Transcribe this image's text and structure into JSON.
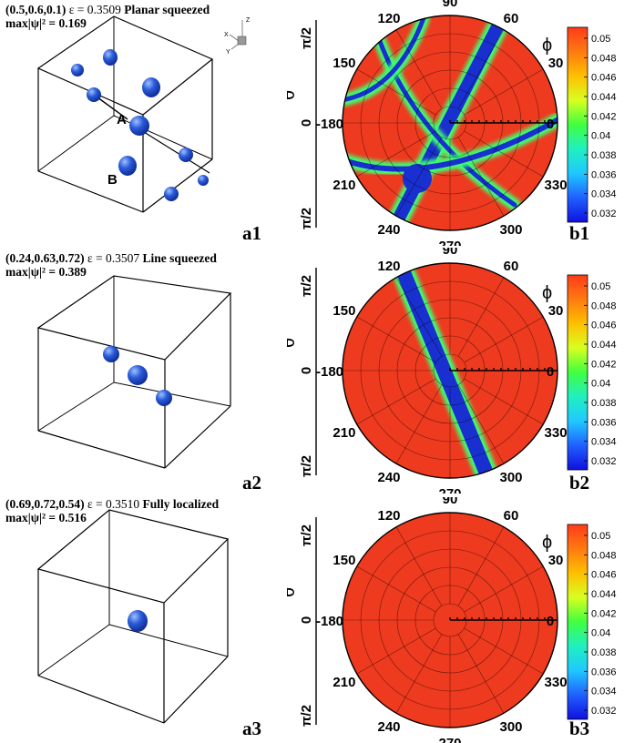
{
  "panels": [
    {
      "params": "(0.5,0.6,0.1)",
      "epsilon": "ε = 0.3509",
      "kind": "Planar squeezed",
      "maxline": "max|ψ|² = 0.169",
      "cube_tag": "a1",
      "polar_tag": "b1",
      "markers": [
        "A",
        "B"
      ]
    },
    {
      "params": "(0.24,0.63,0.72)",
      "epsilon": "ε = 0.3507",
      "kind": "Line squeezed",
      "maxline": "max|ψ|² = 0.389",
      "cube_tag": "a2",
      "polar_tag": "b2",
      "markers": []
    },
    {
      "params": "(0.69,0.72,0.54)",
      "epsilon": "ε = 0.3510",
      "kind": "Fully localized",
      "maxline": "max|ψ|² = 0.516",
      "cube_tag": "a3",
      "polar_tag": "b3",
      "markers": []
    }
  ],
  "axes_triad": {
    "z": "Z",
    "x": "X",
    "y": "Y"
  },
  "polar": {
    "phi_label": "ϕ",
    "theta_label": "θ",
    "theta_top": "π/2",
    "theta_mid": "0",
    "theta_bottom": "π/2",
    "angle_labels": [
      "90",
      "60",
      "30",
      "0",
      "330",
      "300",
      "270",
      "240",
      "210",
      "-180",
      "150",
      "120"
    ]
  },
  "colorbar": {
    "ticks": [
      "0.05",
      "0.048",
      "0.046",
      "0.044",
      "0.042",
      "0.04",
      "0.038",
      "0.036",
      "0.034",
      "0.032"
    ],
    "colors": [
      "#ff3b1a",
      "#ff7a10",
      "#ffc000",
      "#d8ff20",
      "#40ff40",
      "#20f0c0",
      "#20c8ff",
      "#2060ff",
      "#1010e0"
    ]
  },
  "colors": {
    "sphere": "#2a5bd8",
    "field": "#ee3a1e",
    "band": "#1a2fd0",
    "band_glow": "#3cff70"
  }
}
